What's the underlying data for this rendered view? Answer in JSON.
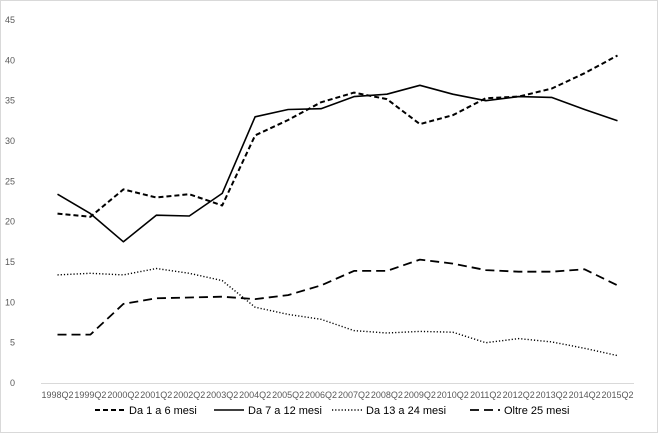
{
  "chart_data": {
    "type": "line",
    "title": "",
    "xlabel": "",
    "ylabel": "",
    "categories": [
      "1998Q2",
      "1999Q2",
      "2000Q2",
      "2001Q2",
      "2002Q2",
      "2003Q2",
      "2004Q2",
      "2005Q2",
      "2006Q2",
      "2007Q2",
      "2008Q2",
      "2009Q2",
      "2010Q2",
      "2011Q2",
      "2012Q2",
      "2013Q2",
      "2014Q2",
      "2015Q2"
    ],
    "ylim": [
      0,
      45
    ],
    "yticks": [
      0,
      5,
      10,
      15,
      20,
      25,
      30,
      35,
      40,
      45
    ],
    "grid": false,
    "legend_position": "bottom",
    "series": [
      {
        "name": "Da 1 a 6 mesi",
        "line_style": "dashed",
        "color": "#000000",
        "values": [
          21.0,
          20.6,
          24.0,
          23.0,
          23.4,
          22.0,
          30.7,
          32.6,
          34.8,
          36.0,
          35.2,
          32.1,
          33.2,
          35.3,
          35.5,
          36.5,
          38.4,
          40.6
        ]
      },
      {
        "name": "Da 7 a 12 mesi",
        "line_style": "solid",
        "color": "#000000",
        "values": [
          23.4,
          21.0,
          17.5,
          20.8,
          20.7,
          23.5,
          33.0,
          33.9,
          34.0,
          35.5,
          35.8,
          36.9,
          35.8,
          35.0,
          35.5,
          35.4,
          33.9,
          32.5
        ]
      },
      {
        "name": "Da 13 a 24 mesi",
        "line_style": "dotted",
        "color": "#000000",
        "values": [
          13.4,
          13.6,
          13.4,
          14.2,
          13.6,
          12.7,
          9.4,
          8.5,
          7.9,
          6.5,
          6.2,
          6.4,
          6.3,
          5.0,
          5.5,
          5.1,
          4.3,
          3.4
        ]
      },
      {
        "name": "Oltre 25 mesi",
        "line_style": "long-dash",
        "color": "#000000",
        "values": [
          6.0,
          6.0,
          9.8,
          10.5,
          10.6,
          10.7,
          10.4,
          10.9,
          12.1,
          13.9,
          13.9,
          15.3,
          14.8,
          14.0,
          13.8,
          13.8,
          14.1,
          12.1
        ]
      }
    ]
  }
}
